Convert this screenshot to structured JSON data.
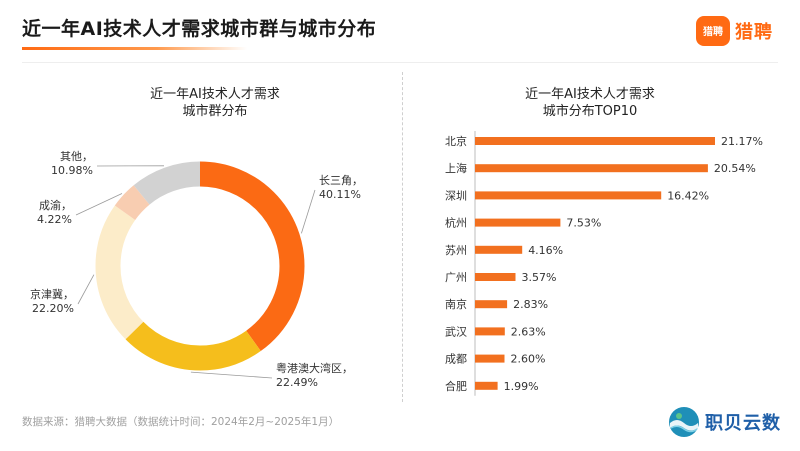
{
  "header": {
    "title": "近一年AI技术人才需求城市群与城市分布",
    "brand_name": "猎聘",
    "brand_badge_text": "猎聘",
    "accent_color": "#ff6a13"
  },
  "footer": {
    "source_note": "数据来源：猎聘大数据（数据统计时间：2024年2月~2025年1月）",
    "watermark_text": "职贝云数"
  },
  "chart_data": [
    {
      "type": "pie",
      "title": "近一年AI技术人才需求\n城市群分布",
      "slices": [
        {
          "label": "长三角",
          "value": 40.11,
          "display": "40.11%",
          "color": "#fb6a14"
        },
        {
          "label": "粤港澳大湾区",
          "value": 22.49,
          "display": "22.49%",
          "color": "#f5be1c"
        },
        {
          "label": "京津冀",
          "value": 22.2,
          "display": "22.20%",
          "color": "#fcecc9"
        },
        {
          "label": "成渝",
          "value": 4.22,
          "display": "4.22%",
          "color": "#f8cdb1"
        },
        {
          "label": "其他",
          "value": 10.98,
          "display": "10.98%",
          "color": "#d2d2d2"
        }
      ]
    },
    {
      "type": "bar",
      "title": "近一年AI技术人才需求\n城市分布TOP10",
      "categories": [
        "北京",
        "上海",
        "深圳",
        "杭州",
        "苏州",
        "广州",
        "南京",
        "武汉",
        "成都",
        "合肥"
      ],
      "values": [
        21.17,
        20.54,
        16.42,
        7.53,
        4.16,
        3.57,
        2.83,
        2.63,
        2.6,
        1.99
      ],
      "labels": [
        "21.17%",
        "20.54%",
        "16.42%",
        "7.53%",
        "4.16%",
        "3.57%",
        "2.83%",
        "2.63%",
        "2.60%",
        "1.99%"
      ],
      "bar_color": "#f2701f"
    }
  ]
}
